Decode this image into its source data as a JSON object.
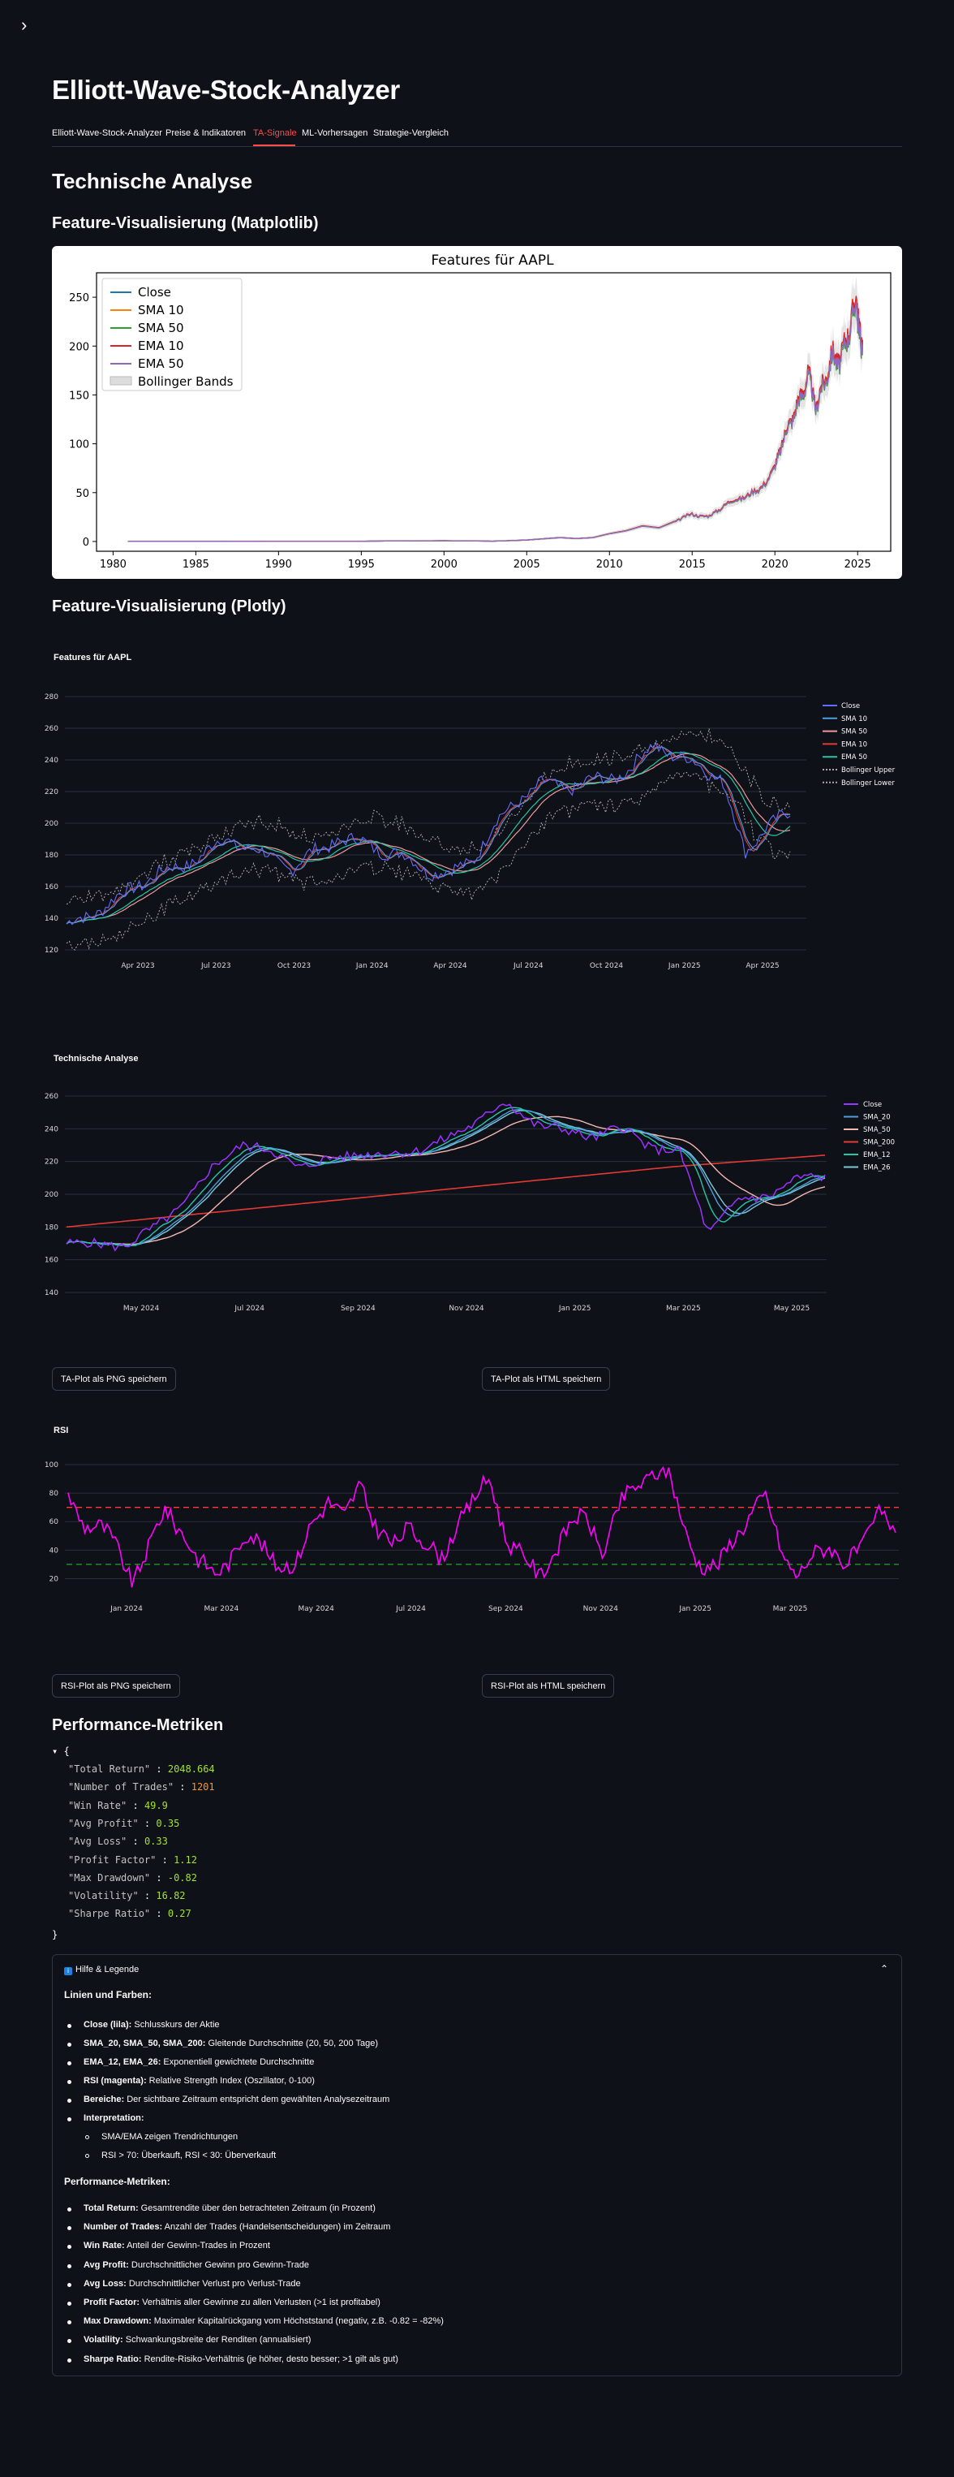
{
  "app": {
    "title": "Elliott-Wave-Stock-Analyzer"
  },
  "tabs": [
    {
      "label": "Elliott-Wave-Stock-Analyzer"
    },
    {
      "label": "Preise & Indikatoren"
    },
    {
      "label": "TA-Signale"
    },
    {
      "label": "ML-Vorhersagen"
    },
    {
      "label": "Strategie-Vergleich"
    }
  ],
  "page": {
    "heading": "Technische Analyse"
  },
  "sections": {
    "mpl": "Feature-Visualisierung (Matplotlib)",
    "plotly": "Feature-Visualisierung (Plotly)",
    "perf": "Performance-Metriken"
  },
  "buttons": {
    "ta_png": "TA-Plot als PNG speichern",
    "ta_html": "TA-Plot als HTML speichern",
    "rsi_png": "RSI-Plot als PNG speichern",
    "rsi_html": "RSI-Plot als HTML speichern"
  },
  "colors": {
    "accent": "#ff4b4b",
    "background": "#0e1117",
    "rsi": "#ff00ff",
    "overbought": "#ff3b3b",
    "oversold": "#2ca02c"
  },
  "chart_data": [
    {
      "type": "line",
      "title": "Features für AAPL",
      "xlim": [
        1980,
        2025
      ],
      "xticks": [
        "1980",
        "1985",
        "1990",
        "1995",
        "2000",
        "2005",
        "2010",
        "2015",
        "2020",
        "2025"
      ],
      "yticks": [
        "0",
        "50",
        "100",
        "150",
        "200",
        "250"
      ],
      "ylim": [
        -10,
        275
      ],
      "legend_position": "top-left",
      "series": [
        {
          "name": "Close",
          "color": "#1f77b4"
        },
        {
          "name": "SMA 10",
          "color": "#ff7f0e"
        },
        {
          "name": "SMA 50",
          "color": "#2ca02c"
        },
        {
          "name": "EMA 10",
          "color": "#d62728"
        },
        {
          "name": "EMA 50",
          "color": "#9467bd"
        },
        {
          "name": "Bollinger Bands",
          "color": "#dddddd"
        }
      ],
      "x": [
        1980.9,
        1985,
        1990,
        1995,
        2000,
        2003,
        2005,
        2007,
        2008,
        2009,
        2010,
        2011,
        2012,
        2013,
        2014,
        2015,
        2016,
        2017,
        2018,
        2019,
        2020,
        2020.5,
        2021,
        2021.5,
        2022,
        2022.5,
        2023,
        2023.5,
        2024,
        2024.5,
        2024.95,
        2025.1,
        2025.3
      ],
      "values": [
        0.1,
        0.1,
        0.3,
        0.3,
        0.8,
        0.3,
        1.5,
        4,
        3,
        4,
        8,
        11,
        16,
        14,
        21,
        28,
        25,
        38,
        45,
        52,
        75,
        105,
        125,
        145,
        170,
        138,
        165,
        190,
        185,
        220,
        245,
        215,
        200
      ]
    },
    {
      "type": "line",
      "title": "Features für AAPL",
      "xticks": [
        "Apr 2023",
        "Jul 2023",
        "Oct 2023",
        "Jan 2024",
        "Apr 2024",
        "Jul 2024",
        "Oct 2024",
        "Jan 2025",
        "Apr 2025"
      ],
      "yticks": [
        "120",
        "140",
        "160",
        "180",
        "200",
        "220",
        "240",
        "260",
        "280"
      ],
      "ylim": [
        120,
        280
      ],
      "legend_position": "right",
      "series": [
        {
          "name": "Close",
          "color": "#636efa"
        },
        {
          "name": "SMA 10",
          "color": "#4c9fe0"
        },
        {
          "name": "SMA 50",
          "color": "#ef9a9a"
        },
        {
          "name": "EMA 10",
          "color": "#e53935"
        },
        {
          "name": "EMA 50",
          "color": "#26c6a6"
        },
        {
          "name": "Bollinger Upper",
          "color": "#aaaaaa"
        },
        {
          "name": "Bollinger Lower",
          "color": "#aaaaaa"
        }
      ],
      "values": [
        135,
        142,
        150,
        160,
        168,
        172,
        180,
        190,
        185,
        178,
        172,
        182,
        190,
        188,
        183,
        178,
        170,
        168,
        178,
        200,
        215,
        225,
        222,
        226,
        228,
        235,
        250,
        242,
        236,
        228,
        180,
        200,
        205
      ]
    },
    {
      "type": "line",
      "title": "Technische Analyse",
      "xticks": [
        "May 2024",
        "Jul 2024",
        "Sep 2024",
        "Nov 2024",
        "Jan 2025",
        "Mar 2025",
        "May 2025"
      ],
      "yticks": [
        "140",
        "160",
        "180",
        "200",
        "220",
        "240",
        "260"
      ],
      "ylim": [
        140,
        260
      ],
      "legend_position": "right",
      "series": [
        {
          "name": "Close",
          "color": "#9933ff"
        },
        {
          "name": "SMA_20",
          "color": "#4c9fe0"
        },
        {
          "name": "SMA_50",
          "color": "#f5b7b1"
        },
        {
          "name": "SMA_200",
          "color": "#e53935"
        },
        {
          "name": "EMA_12",
          "color": "#26c6a6"
        },
        {
          "name": "EMA_26",
          "color": "#7fc8d8"
        }
      ],
      "values": [
        172,
        168,
        170,
        178,
        195,
        215,
        232,
        225,
        218,
        220,
        226,
        223,
        228,
        232,
        245,
        255,
        245,
        238,
        236,
        240,
        230,
        225,
        178,
        195,
        200,
        208,
        212
      ]
    },
    {
      "type": "line",
      "title": "RSI",
      "xticks": [
        "Jan 2024",
        "Mar 2024",
        "May 2024",
        "Jul 2024",
        "Sep 2024",
        "Nov 2024",
        "Jan 2025",
        "Mar 2025"
      ],
      "yticks": [
        "20",
        "40",
        "60",
        "80",
        "100"
      ],
      "ylim": [
        10,
        100
      ],
      "thresholds": {
        "overbought": 70,
        "oversold": 30
      },
      "series": [
        {
          "name": "RSI",
          "color": "#ff00ff"
        }
      ],
      "values": [
        78,
        60,
        55,
        42,
        20,
        40,
        70,
        55,
        30,
        25,
        35,
        48,
        45,
        30,
        25,
        62,
        75,
        60,
        90,
        55,
        40,
        60,
        45,
        30,
        62,
        75,
        88,
        50,
        35,
        20,
        42,
        58,
        62,
        40,
        70,
        85,
        96,
        92,
        55,
        30,
        25,
        50,
        65,
        75,
        40,
        22,
        35,
        45,
        30,
        40,
        72,
        55
      ]
    }
  ],
  "metrics": [
    {
      "key": "\"Total Return\"",
      "value": "2048.664",
      "kind": "num"
    },
    {
      "key": "\"Number of Trades\"",
      "value": "1201",
      "kind": "int"
    },
    {
      "key": "\"Win Rate\"",
      "value": "49.9",
      "kind": "num"
    },
    {
      "key": "\"Avg Profit\"",
      "value": "0.35",
      "kind": "num"
    },
    {
      "key": "\"Avg Loss\"",
      "value": "0.33",
      "kind": "num"
    },
    {
      "key": "\"Profit Factor\"",
      "value": "1.12",
      "kind": "num"
    },
    {
      "key": "\"Max Drawdown\"",
      "value": "-0.82",
      "kind": "num"
    },
    {
      "key": "\"Volatility\"",
      "value": "16.82",
      "kind": "num"
    },
    {
      "key": "\"Sharpe Ratio\"",
      "value": "0.27",
      "kind": "num"
    }
  ],
  "help": {
    "header": "Hilfe & Legende",
    "lines_title": "Linien und Farben:",
    "lines": [
      {
        "term": "Close (lila):",
        "desc": " Schlusskurs der Aktie"
      },
      {
        "term": "SMA_20, SMA_50, SMA_200:",
        "desc": " Gleitende Durchschnitte (20, 50, 200 Tage)"
      },
      {
        "term": "EMA_12, EMA_26:",
        "desc": " Exponentiell gewichtete Durchschnitte"
      },
      {
        "term": "RSI (magenta):",
        "desc": " Relative Strength Index (Oszillator, 0-100)"
      },
      {
        "term": "Bereiche:",
        "desc": " Der sichtbare Zeitraum entspricht dem gewählten Analysezeitraum"
      },
      {
        "term": "Interpretation:",
        "desc": ""
      }
    ],
    "sub": [
      "SMA/EMA zeigen Trendrichtungen",
      "RSI > 70: Überkauft, RSI < 30: Überverkauft"
    ],
    "perf_title": "Performance-Metriken:",
    "perf": [
      {
        "term": "Total Return:",
        "desc": " Gesamtrendite über den betrachteten Zeitraum (in Prozent)"
      },
      {
        "term": "Number of Trades:",
        "desc": " Anzahl der Trades (Handelsentscheidungen) im Zeitraum"
      },
      {
        "term": "Win Rate:",
        "desc": " Anteil der Gewinn-Trades in Prozent"
      },
      {
        "term": "Avg Profit:",
        "desc": " Durchschnittlicher Gewinn pro Gewinn-Trade"
      },
      {
        "term": "Avg Loss:",
        "desc": " Durchschnittlicher Verlust pro Verlust-Trade"
      },
      {
        "term": "Profit Factor:",
        "desc": " Verhältnis aller Gewinne zu allen Verlusten (>1 ist profitabel)"
      },
      {
        "term": "Max Drawdown:",
        "desc": " Maximaler Kapitalrückgang vom Höchststand (negativ, z.B. -0.82 = -82%)"
      },
      {
        "term": "Volatility:",
        "desc": " Schwankungsbreite der Renditen (annualisiert)"
      },
      {
        "term": "Sharpe Ratio:",
        "desc": " Rendite-Risiko-Verhältnis (je höher, desto besser; >1 gilt als gut)"
      }
    ]
  }
}
